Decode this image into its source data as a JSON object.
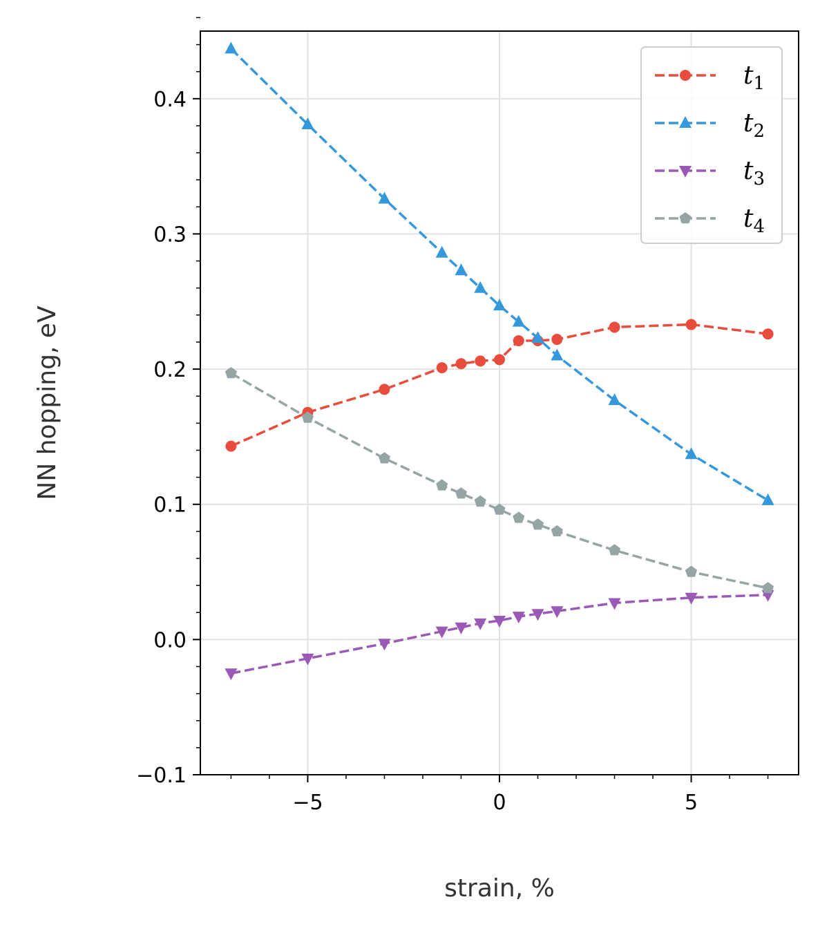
{
  "chart_data": {
    "type": "line",
    "xlabel": "strain, %",
    "ylabel": "NN hopping, eV",
    "xlim": [
      -7.8,
      7.8
    ],
    "ylim": [
      -0.1,
      0.45
    ],
    "xticks": [
      -5,
      0,
      5
    ],
    "xtick_labels": [
      "−5",
      "0",
      "5"
    ],
    "yticks": [
      -0.1,
      0.0,
      0.1,
      0.2,
      0.3,
      0.4
    ],
    "ytick_labels": [
      "−0.1",
      "0.0",
      "0.1",
      "0.2",
      "0.3",
      "0.4"
    ],
    "x_minor_step": 1,
    "y_minor_step": 0.02,
    "grid": true,
    "legend_position": "top-right",
    "series": [
      {
        "name": "t1",
        "label_main": "t",
        "label_sub": "1",
        "color": "#e74c3c",
        "marker": "circle",
        "linestyle": "dashed",
        "x": [
          -7,
          -5,
          -3,
          -1.5,
          -1,
          -0.5,
          0,
          0.5,
          1,
          1.5,
          3,
          5,
          7
        ],
        "y": [
          0.143,
          0.168,
          0.185,
          0.201,
          0.204,
          0.206,
          0.207,
          0.221,
          0.221,
          0.222,
          0.231,
          0.233,
          0.226
        ]
      },
      {
        "name": "t2",
        "label_main": "t",
        "label_sub": "2",
        "color": "#3498db",
        "marker": "triangle-up",
        "linestyle": "dashed",
        "x": [
          -7,
          -5,
          -3,
          -1.5,
          -1,
          -0.5,
          0,
          0.5,
          1,
          1.5,
          3,
          5,
          7
        ],
        "y": [
          0.437,
          0.381,
          0.326,
          0.286,
          0.273,
          0.26,
          0.247,
          0.235,
          0.223,
          0.21,
          0.177,
          0.137,
          0.103
        ]
      },
      {
        "name": "t3",
        "label_main": "t",
        "label_sub": "3",
        "color": "#9b59b6",
        "marker": "triangle-down",
        "linestyle": "dashed",
        "x": [
          -7,
          -5,
          -3,
          -1.5,
          -1,
          -0.5,
          0,
          0.5,
          1,
          1.5,
          3,
          5,
          7
        ],
        "y": [
          -0.025,
          -0.014,
          -0.003,
          0.006,
          0.009,
          0.012,
          0.014,
          0.017,
          0.019,
          0.021,
          0.027,
          0.031,
          0.033
        ]
      },
      {
        "name": "t4",
        "label_main": "t",
        "label_sub": "4",
        "color": "#95a5a6",
        "marker": "pentagon",
        "linestyle": "dashed",
        "x": [
          -7,
          -5,
          -3,
          -1.5,
          -1,
          -0.5,
          0,
          0.5,
          1,
          1.5,
          3,
          5,
          7
        ],
        "y": [
          0.197,
          0.164,
          0.134,
          0.114,
          0.108,
          0.102,
          0.096,
          0.09,
          0.085,
          0.08,
          0.066,
          0.05,
          0.038
        ]
      }
    ]
  }
}
